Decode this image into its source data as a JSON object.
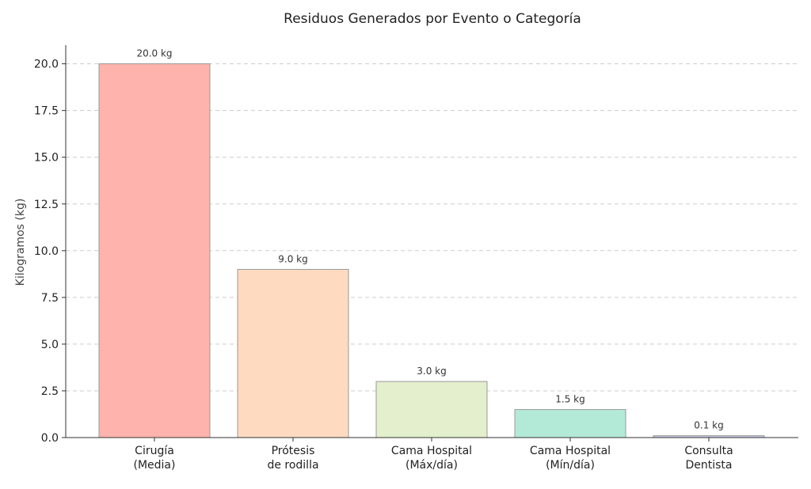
{
  "chart_data": {
    "type": "bar",
    "title": "Residuos Generados por Evento o Categoría",
    "xlabel": "",
    "ylabel": "Kilogramos (kg)",
    "categories": [
      [
        "Cirugía",
        "(Media)"
      ],
      [
        "Prótesis",
        "de rodilla"
      ],
      [
        "Cama Hospital",
        "(Máx/día)"
      ],
      [
        "Cama Hospital",
        "(Mín/día)"
      ],
      [
        "Consulta",
        "Dentista"
      ]
    ],
    "values": [
      20.0,
      9.0,
      3.0,
      1.5,
      0.1
    ],
    "data_labels": [
      "20.0 kg",
      "9.0 kg",
      "3.0 kg",
      "1.5 kg",
      "0.1 kg"
    ],
    "colors": [
      "#ffb3ad",
      "#fedac0",
      "#e3efcd",
      "#b3ead7",
      "#c8cbea"
    ],
    "ylim": [
      0,
      21
    ],
    "yticks": [
      0,
      2.5,
      5,
      7.5,
      10,
      12.5,
      15,
      17.5,
      20
    ],
    "ytick_labels": [
      "0.0",
      "2.5",
      "5.0",
      "7.5",
      "10.0",
      "12.5",
      "15.0",
      "17.5",
      "20.0"
    ],
    "grid": "horizontal dashed",
    "legend": "none"
  }
}
